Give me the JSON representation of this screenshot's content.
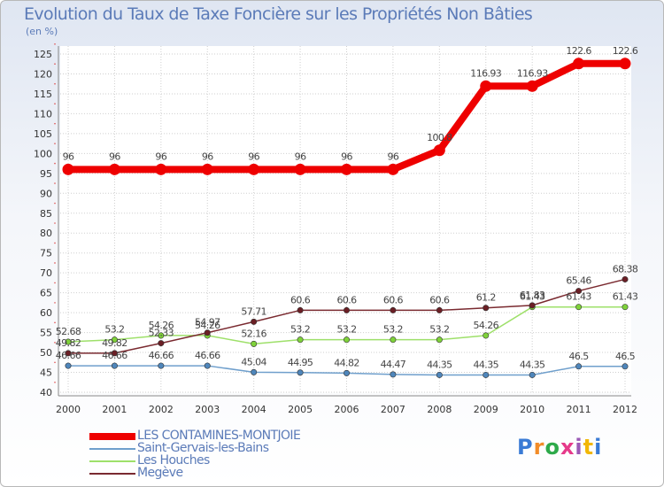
{
  "header": {
    "title": "Evolution du Taux de Taxe Foncière sur les Propriétés Non Bâties",
    "unit": "(en %)"
  },
  "brand": {
    "logo_text": "Proxiti"
  },
  "chart_data": {
    "type": "line",
    "title": "Evolution du Taux de Taxe Foncière sur les Propriétés Non Bâties",
    "ylabel": "(en %)",
    "xlabel": "",
    "ylim": [
      40,
      125
    ],
    "ytick_step": 5,
    "yticks": [
      "40",
      "45",
      "50",
      "55",
      "60",
      "65",
      "70",
      "75",
      "80",
      "85",
      "90",
      "95",
      "100",
      "105",
      "110",
      "115",
      "120",
      "125"
    ],
    "categories": [
      "2000",
      "2001",
      "2002",
      "2003",
      "2004",
      "2005",
      "2006",
      "2007",
      "2008",
      "2009",
      "2010",
      "2011",
      "2012"
    ],
    "grid": true,
    "legend_position": "bottom-left",
    "series": [
      {
        "name": "LES CONTAMINES-MONTJOIE",
        "color": "#ee0000",
        "marker_fill": "#ee0000",
        "emphasis": "bold",
        "values": [
          96,
          96,
          96,
          96,
          96,
          96,
          96,
          96,
          100.8,
          116.93,
          116.93,
          122.6,
          122.6
        ],
        "labels": [
          "96",
          "96",
          "96",
          "96",
          "96",
          "96",
          "96",
          "96",
          "100.8",
          "116.93",
          "116.93",
          "122.6",
          "122.6"
        ]
      },
      {
        "name": "Saint-Gervais-les-Bains",
        "color": "#6f9fcc",
        "marker_fill": "#4f86bb",
        "emphasis": "normal",
        "values": [
          46.66,
          46.66,
          46.66,
          46.66,
          45.04,
          44.95,
          44.82,
          44.47,
          44.35,
          44.35,
          44.35,
          46.5,
          46.5
        ],
        "labels": [
          "46.66",
          "46.66",
          "46.66",
          "46.66",
          "45.04",
          "44.95",
          "44.82",
          "44.47",
          "44.35",
          "44.35",
          "44.35",
          "46.5",
          "46.5"
        ]
      },
      {
        "name": "Les Houches",
        "color": "#9ee06a",
        "marker_fill": "#7fd23a",
        "emphasis": "normal",
        "values": [
          52.68,
          53.2,
          54.26,
          54.26,
          52.16,
          53.2,
          53.2,
          53.2,
          53.2,
          54.26,
          61.43,
          61.43,
          61.43
        ],
        "labels": [
          "52.68",
          "53.2",
          "54.26",
          "54.26",
          "52.16",
          "53.2",
          "53.2",
          "53.2",
          "53.2",
          "54.26",
          "61.43",
          "61.43",
          "61.43"
        ]
      },
      {
        "name": "Megève",
        "color": "#7a2a30",
        "marker_fill": "#6b1f25",
        "emphasis": "normal",
        "values": [
          49.82,
          49.82,
          52.33,
          54.97,
          57.71,
          60.6,
          60.6,
          60.6,
          60.6,
          61.2,
          61.83,
          65.46,
          68.38
        ],
        "labels": [
          "49.82",
          "49.82",
          "52.33",
          "54.97",
          "57.71",
          "60.6",
          "60.6",
          "60.6",
          "60.6",
          "61.2",
          "61.83",
          "65.46",
          "68.38"
        ]
      }
    ]
  }
}
